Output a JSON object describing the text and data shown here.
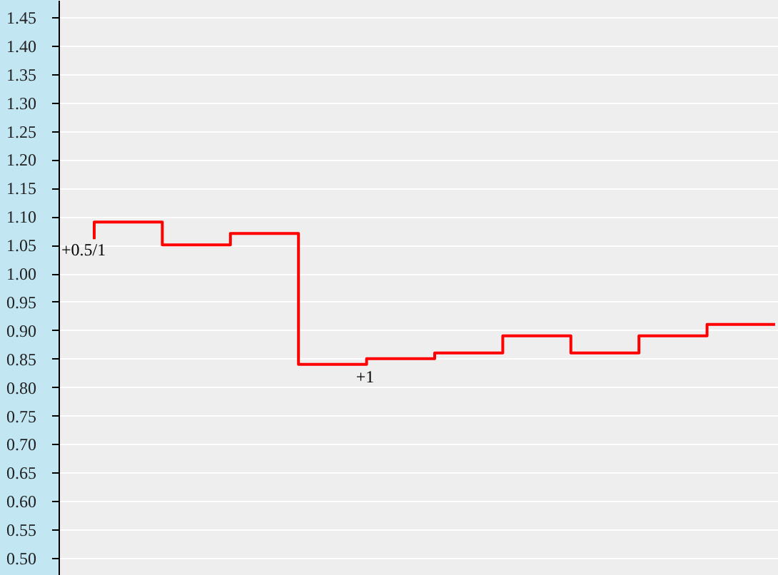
{
  "chart_data": {
    "type": "step",
    "categories": [
      null,
      null,
      null,
      null,
      null,
      null,
      null,
      null,
      null,
      null,
      null
    ],
    "series": [
      {
        "color": "#ff0000",
        "values": [
          1.06,
          1.09,
          1.05,
          1.07,
          0.84,
          0.85,
          0.86,
          0.89,
          0.86,
          0.89,
          0.91
        ]
      }
    ],
    "ylim": [
      0.47,
      1.48
    ],
    "yticks": [
      1.45,
      {
        "value": 1.4,
        "label": "1.40"
      },
      1.35,
      {
        "value": 1.3,
        "label": "1.30"
      },
      1.25,
      {
        "value": 1.2,
        "label": "1.20"
      },
      1.15,
      {
        "value": 1.1,
        "label": "1.10"
      },
      1.05,
      {
        "value": 1.0,
        "label": "1.00"
      },
      0.95,
      {
        "value": 0.9,
        "label": "0.90"
      },
      0.85,
      {
        "value": 0.8,
        "label": "0.80"
      },
      0.75,
      {
        "value": 0.7,
        "label": "0.70"
      },
      0.65,
      {
        "value": 0.6,
        "label": "0.60"
      },
      0.55,
      {
        "value": 0.5,
        "label": "0.50"
      }
    ],
    "grid": "y",
    "tick_labels": "y",
    "annotations": [
      "+0.5/1",
      "+1"
    ]
  }
}
